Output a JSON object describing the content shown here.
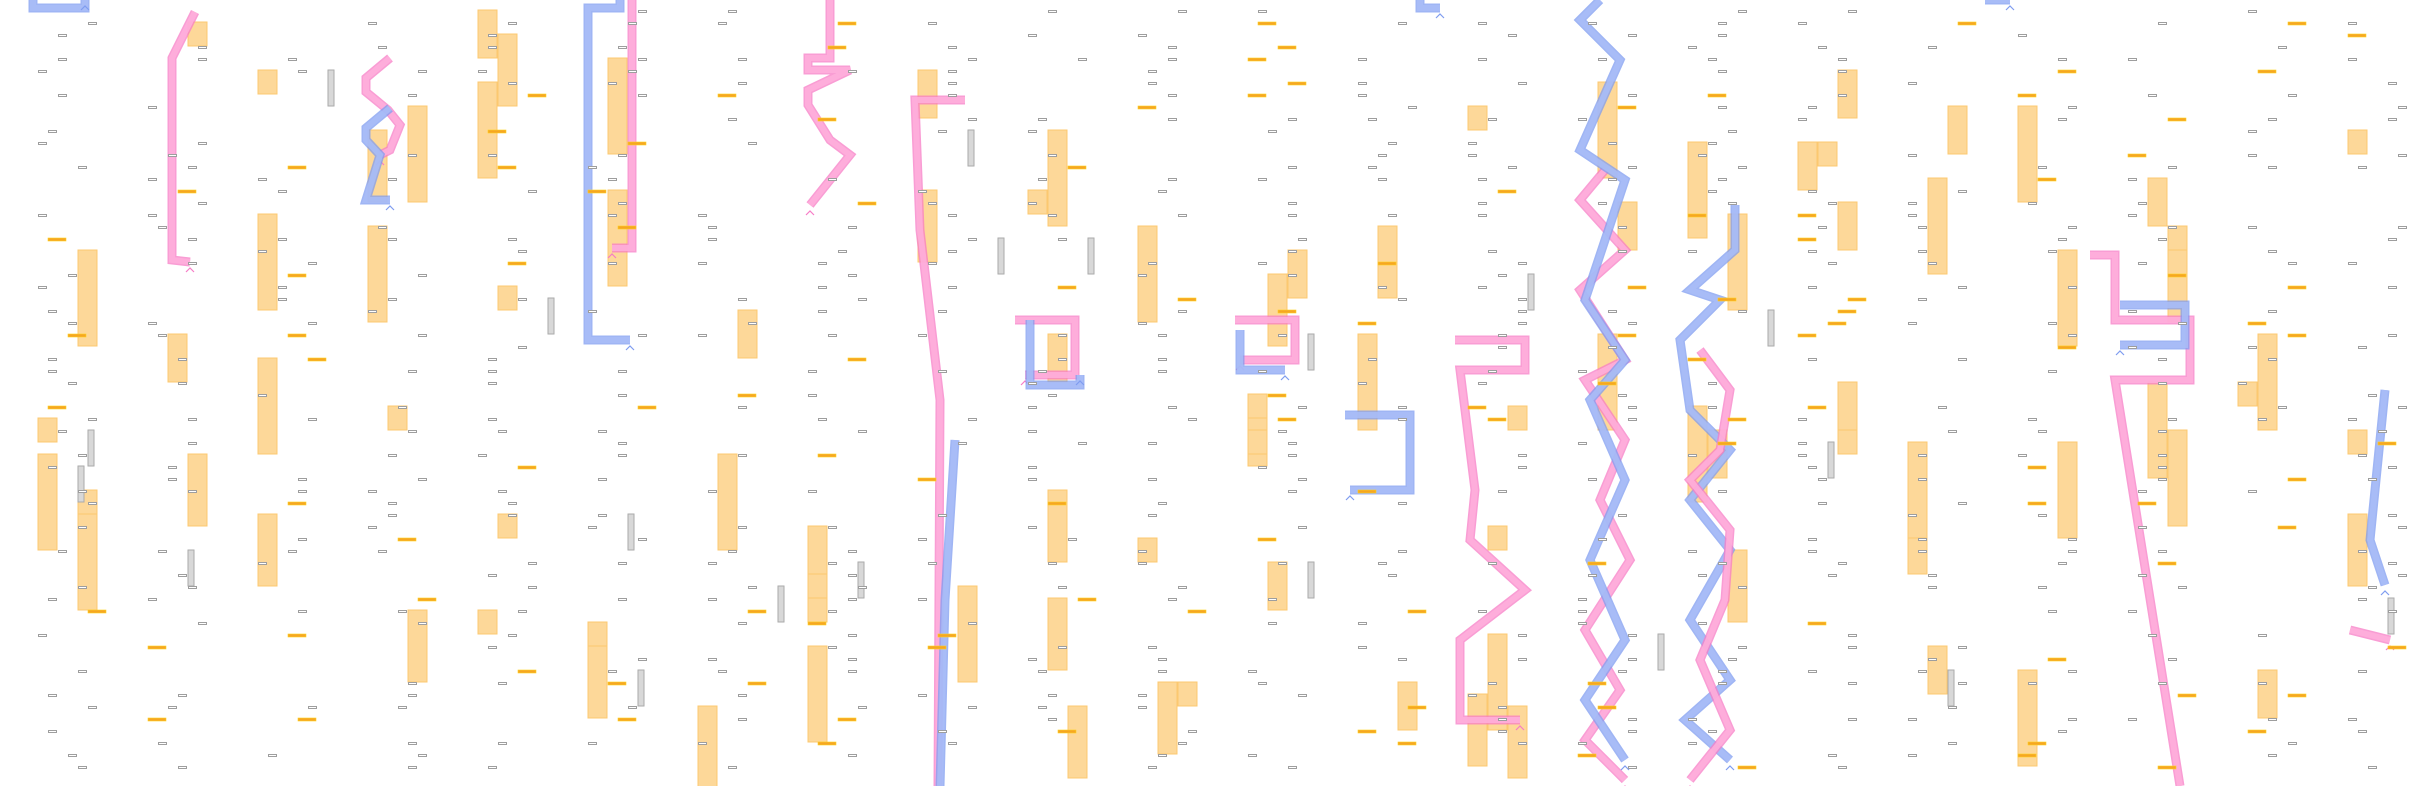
{
  "board": {
    "columns": 22,
    "colors": {
      "background": "#ffffff",
      "platform_outline": "#9e9e9e",
      "platform_fill": "#ffffff",
      "gold_bar": "#f5a623",
      "gold_bar_highlight": "#ffd21f",
      "block": "#fdd899",
      "block_edge": "#fcc870",
      "blue_path": "#a9bdf7",
      "blue_path_edge": "#7f9cf0",
      "pink_path": "#ffb0dc",
      "pink_path_edge": "#f77cc6",
      "pillar": "#d8d8d8"
    },
    "icons": [
      "platform-icon",
      "gold-bar-icon",
      "block-icon",
      "pillar-icon",
      "blue-path",
      "pink-path",
      "caret-up-icon"
    ]
  }
}
